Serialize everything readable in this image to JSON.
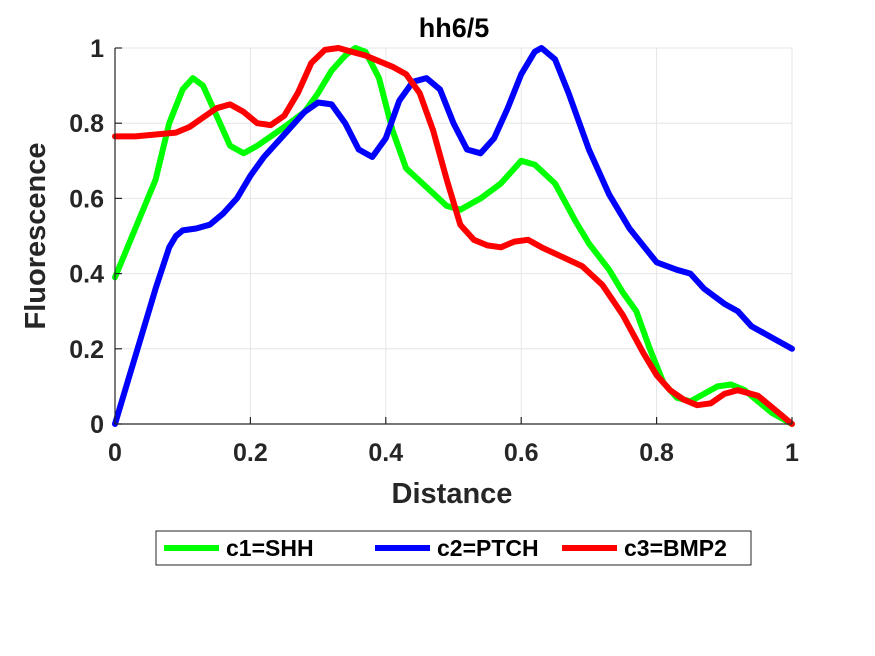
{
  "chart_data": {
    "type": "line",
    "title": "hh6/5",
    "xlabel": "Distance",
    "ylabel": "Fluorescence",
    "xlim": [
      0,
      1
    ],
    "ylim": [
      0,
      1
    ],
    "xticks": [
      "0",
      "0.2",
      "0.4",
      "0.6",
      "0.8",
      "1"
    ],
    "yticks": [
      "0",
      "0.2",
      "0.4",
      "0.6",
      "0.8",
      "1"
    ],
    "grid": true,
    "legend_position": "bottom-outside",
    "series": [
      {
        "name": "c1=SHH",
        "color": "#00ff00",
        "x": [
          0,
          0.03,
          0.06,
          0.08,
          0.1,
          0.115,
          0.13,
          0.15,
          0.17,
          0.19,
          0.21,
          0.25,
          0.28,
          0.3,
          0.32,
          0.34,
          0.355,
          0.37,
          0.39,
          0.41,
          0.43,
          0.46,
          0.49,
          0.51,
          0.54,
          0.57,
          0.6,
          0.62,
          0.65,
          0.68,
          0.7,
          0.73,
          0.75,
          0.77,
          0.79,
          0.81,
          0.83,
          0.85,
          0.87,
          0.89,
          0.91,
          0.93,
          0.95,
          0.97,
          1.0
        ],
        "y": [
          0.39,
          0.52,
          0.65,
          0.8,
          0.89,
          0.92,
          0.9,
          0.82,
          0.74,
          0.72,
          0.74,
          0.79,
          0.83,
          0.88,
          0.94,
          0.98,
          1.0,
          0.99,
          0.92,
          0.78,
          0.68,
          0.63,
          0.58,
          0.57,
          0.6,
          0.64,
          0.7,
          0.69,
          0.64,
          0.54,
          0.48,
          0.41,
          0.35,
          0.3,
          0.2,
          0.11,
          0.07,
          0.06,
          0.08,
          0.1,
          0.105,
          0.09,
          0.06,
          0.03,
          0.0
        ]
      },
      {
        "name": "c2=PTCH",
        "color": "#0000ff",
        "x": [
          0,
          0.02,
          0.04,
          0.06,
          0.08,
          0.09,
          0.1,
          0.12,
          0.14,
          0.16,
          0.18,
          0.2,
          0.22,
          0.25,
          0.28,
          0.3,
          0.32,
          0.34,
          0.36,
          0.38,
          0.4,
          0.42,
          0.44,
          0.46,
          0.48,
          0.5,
          0.52,
          0.54,
          0.56,
          0.58,
          0.6,
          0.62,
          0.63,
          0.65,
          0.67,
          0.7,
          0.73,
          0.76,
          0.8,
          0.83,
          0.85,
          0.87,
          0.9,
          0.92,
          0.94,
          0.97,
          1.0
        ],
        "y": [
          0.0,
          0.12,
          0.24,
          0.36,
          0.47,
          0.5,
          0.515,
          0.52,
          0.53,
          0.56,
          0.6,
          0.66,
          0.71,
          0.77,
          0.83,
          0.855,
          0.85,
          0.8,
          0.73,
          0.71,
          0.76,
          0.86,
          0.91,
          0.92,
          0.89,
          0.8,
          0.73,
          0.72,
          0.76,
          0.84,
          0.93,
          0.99,
          1.0,
          0.97,
          0.88,
          0.73,
          0.61,
          0.52,
          0.43,
          0.41,
          0.4,
          0.36,
          0.32,
          0.3,
          0.26,
          0.23,
          0.2
        ]
      },
      {
        "name": "c3=BMP2",
        "color": "#ff0000",
        "x": [
          0,
          0.03,
          0.06,
          0.09,
          0.11,
          0.13,
          0.15,
          0.17,
          0.19,
          0.21,
          0.23,
          0.25,
          0.27,
          0.29,
          0.31,
          0.33,
          0.35,
          0.37,
          0.39,
          0.41,
          0.43,
          0.45,
          0.47,
          0.49,
          0.51,
          0.53,
          0.55,
          0.57,
          0.59,
          0.61,
          0.63,
          0.66,
          0.69,
          0.72,
          0.75,
          0.78,
          0.8,
          0.82,
          0.84,
          0.86,
          0.88,
          0.9,
          0.92,
          0.95,
          0.98,
          1.0
        ],
        "y": [
          0.765,
          0.765,
          0.77,
          0.775,
          0.79,
          0.815,
          0.84,
          0.85,
          0.83,
          0.8,
          0.795,
          0.82,
          0.88,
          0.96,
          0.995,
          1.0,
          0.99,
          0.98,
          0.965,
          0.95,
          0.93,
          0.88,
          0.78,
          0.65,
          0.53,
          0.49,
          0.475,
          0.47,
          0.485,
          0.49,
          0.47,
          0.445,
          0.42,
          0.37,
          0.29,
          0.19,
          0.13,
          0.09,
          0.065,
          0.05,
          0.055,
          0.08,
          0.09,
          0.075,
          0.03,
          0.0
        ]
      }
    ]
  }
}
